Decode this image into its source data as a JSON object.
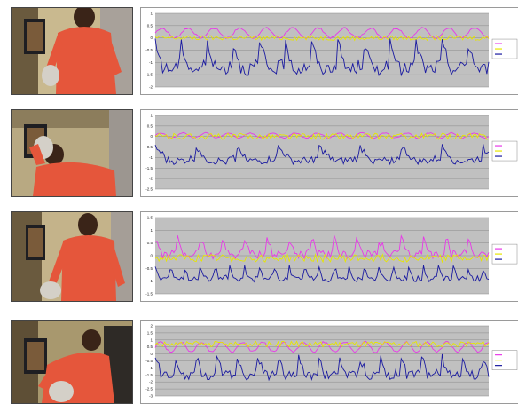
{
  "photos": [
    {
      "caption": ""
    },
    {
      "caption": ""
    },
    {
      "caption": ""
    },
    {
      "caption": ""
    }
  ],
  "chart_data": [
    {
      "type": "line",
      "title": "",
      "xlabel": "",
      "ylabel": "",
      "ylim": [
        -2,
        1
      ],
      "yticks": [
        "1",
        "0.5",
        "0",
        "-0.5",
        "-1",
        "-1.5",
        "-2"
      ],
      "grid": true,
      "legend_position": "right",
      "series": [
        {
          "name": "",
          "color": "#e838e8",
          "baseline": 0.2,
          "amplitude": 0.2,
          "period": 14,
          "style": "smooth"
        },
        {
          "name": "",
          "color": "#e6e600",
          "baseline": 0.0,
          "amplitude": 0.1,
          "period": 10,
          "style": "flat"
        },
        {
          "name": "",
          "color": "#1a1aa0",
          "baseline": -1.0,
          "amplitude": 0.9,
          "period": 14,
          "style": "spiky"
        }
      ]
    },
    {
      "type": "line",
      "title": "",
      "xlabel": "",
      "ylabel": "",
      "ylim": [
        -2.5,
        1
      ],
      "yticks": [
        "1",
        "0.5",
        "0",
        "-0.5",
        "-1",
        "-1.5",
        "-2",
        "-2.5"
      ],
      "grid": true,
      "legend_position": "right",
      "series": [
        {
          "name": "",
          "color": "#e838e8",
          "baseline": 0.05,
          "amplitude": 0.12,
          "period": 12,
          "style": "smooth"
        },
        {
          "name": "",
          "color": "#e6e600",
          "baseline": 0.0,
          "amplitude": 0.15,
          "period": 9,
          "style": "flat"
        },
        {
          "name": "",
          "color": "#1a1aa0",
          "baseline": -1.0,
          "amplitude": 0.6,
          "period": 22,
          "style": "spiky"
        }
      ]
    },
    {
      "type": "line",
      "title": "",
      "xlabel": "",
      "ylabel": "",
      "ylim": [
        -1.5,
        1.5
      ],
      "yticks": [
        "1.5",
        "1",
        "0.5",
        "0",
        "-0.5",
        "-1",
        "-1.5"
      ],
      "grid": true,
      "legend_position": "right",
      "series": [
        {
          "name": "",
          "color": "#e838e8",
          "baseline": 0.2,
          "amplitude": 0.55,
          "period": 12,
          "style": "spiky"
        },
        {
          "name": "",
          "color": "#e6e600",
          "baseline": -0.1,
          "amplitude": 0.15,
          "period": 10,
          "style": "flat"
        },
        {
          "name": "",
          "color": "#1a1aa0",
          "baseline": -0.8,
          "amplitude": 0.4,
          "period": 8,
          "style": "spiky"
        }
      ]
    },
    {
      "type": "line",
      "title": "",
      "xlabel": "",
      "ylabel": "",
      "ylim": [
        -3,
        2
      ],
      "yticks": [
        "2",
        "1.5",
        "1",
        "0.5",
        "0",
        "-0.5",
        "-1",
        "-1.5",
        "-2",
        "-2.5",
        "-3"
      ],
      "grid": true,
      "legend_position": "right",
      "series": [
        {
          "name": "",
          "color": "#e838e8",
          "baseline": 0.5,
          "amplitude": 0.35,
          "period": 11,
          "style": "smooth"
        },
        {
          "name": "",
          "color": "#e6e600",
          "baseline": 0.7,
          "amplitude": 0.2,
          "period": 9,
          "style": "flat"
        },
        {
          "name": "",
          "color": "#1a1aa0",
          "baseline": -1.2,
          "amplitude": 1.1,
          "period": 11,
          "style": "spiky"
        }
      ]
    }
  ]
}
